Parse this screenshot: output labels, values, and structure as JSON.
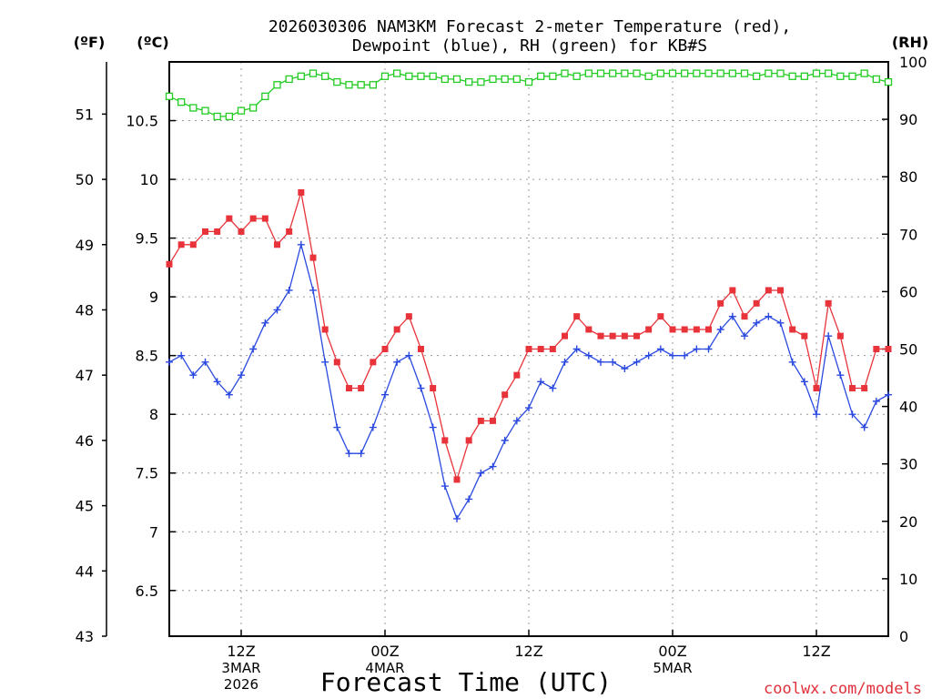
{
  "chart_data": {
    "type": "line",
    "title_line1": "2026030306 NAM3KM Forecast 2-meter Temperature (red),",
    "title_line2": "Dewpoint (blue), RH (green) for KB#S",
    "xlabel": "Forecast Time (UTC)",
    "credit": "coolwx.com/models",
    "units": {
      "fahrenheit": "(ºF)",
      "celsius": "(ºC)",
      "rh": "(RH)"
    },
    "left_f_ticks": [
      "43",
      "44",
      "45",
      "46",
      "47",
      "48",
      "49",
      "50",
      "51"
    ],
    "left_c_ticks": [
      "6.5",
      "7",
      "7.5",
      "8",
      "8.5",
      "9",
      "9.5",
      "10",
      "10.5"
    ],
    "right_rh_ticks": [
      "0",
      "10",
      "20",
      "30",
      "40",
      "50",
      "60",
      "70",
      "80",
      "90",
      "100"
    ],
    "x_ticks": [
      {
        "hour": 12,
        "label": "12Z",
        "sub1": "3MAR",
        "sub2": "2026"
      },
      {
        "hour": 24,
        "label": "00Z",
        "sub1": "4MAR",
        "sub2": ""
      },
      {
        "hour": 36,
        "label": "12Z",
        "sub1": "",
        "sub2": ""
      },
      {
        "hour": 48,
        "label": "00Z",
        "sub1": "5MAR",
        "sub2": ""
      },
      {
        "hour": 60,
        "label": "12Z",
        "sub1": "",
        "sub2": ""
      }
    ],
    "x_range_hours": [
      6,
      66
    ],
    "f_range": [
      43,
      51.8
    ],
    "rh_range": [
      0,
      100
    ],
    "grid": true,
    "series": [
      {
        "key": "temperature",
        "color": "#e8333a",
        "marker": "filled-square",
        "x": [
          6,
          7,
          8,
          9,
          10,
          11,
          12,
          13,
          14,
          15,
          16,
          17,
          18,
          19,
          20,
          21,
          22,
          23,
          24,
          25,
          26,
          27,
          28,
          29,
          30,
          31,
          32,
          33,
          34,
          35,
          36,
          37,
          38,
          39,
          40,
          41,
          42,
          43,
          44,
          45,
          46,
          47,
          48,
          49,
          50,
          51,
          52,
          53,
          54,
          55,
          56,
          57,
          58,
          59,
          60,
          61,
          62,
          63,
          64,
          65,
          66
        ],
        "values": [
          48.7,
          49,
          49,
          49.2,
          49.2,
          49.4,
          49.2,
          49.4,
          49.4,
          49,
          49.2,
          49.8,
          48.8,
          47.7,
          47.2,
          46.8,
          46.8,
          47.2,
          47.4,
          47.7,
          47.9,
          47.4,
          46.8,
          46,
          45.4,
          46,
          46.3,
          46.3,
          46.7,
          47,
          47.4,
          47.4,
          47.4,
          47.6,
          47.9,
          47.7,
          47.6,
          47.6,
          47.6,
          47.6,
          47.7,
          47.9,
          47.7,
          47.7,
          47.7,
          47.7,
          48.1,
          48.3,
          47.9,
          48.1,
          48.3,
          48.3,
          47.7,
          47.6,
          46.8,
          48.1,
          47.6,
          46.8,
          46.8,
          47.4,
          47.4
        ]
      },
      {
        "key": "dewpoint",
        "color": "#2a49e0",
        "marker": "plus",
        "x": [
          6,
          7,
          8,
          9,
          10,
          11,
          12,
          13,
          14,
          15,
          16,
          17,
          18,
          19,
          20,
          21,
          22,
          23,
          24,
          25,
          26,
          27,
          28,
          29,
          30,
          31,
          32,
          33,
          34,
          35,
          36,
          37,
          38,
          39,
          40,
          41,
          42,
          43,
          44,
          45,
          46,
          47,
          48,
          49,
          50,
          51,
          52,
          53,
          54,
          55,
          56,
          57,
          58,
          59,
          60,
          61,
          62,
          63,
          64,
          65,
          66
        ],
        "values": [
          47.2,
          47.3,
          47,
          47.2,
          46.9,
          46.7,
          47,
          47.4,
          47.8,
          48,
          48.3,
          49,
          48.3,
          47.2,
          46.2,
          45.8,
          45.8,
          46.2,
          46.7,
          47.2,
          47.3,
          46.8,
          46.2,
          45.3,
          44.8,
          45.1,
          45.5,
          45.6,
          46,
          46.3,
          46.5,
          46.9,
          46.8,
          47.2,
          47.4,
          47.3,
          47.2,
          47.2,
          47.1,
          47.2,
          47.3,
          47.4,
          47.3,
          47.3,
          47.4,
          47.4,
          47.7,
          47.9,
          47.6,
          47.8,
          47.9,
          47.8,
          47.2,
          46.9,
          46.4,
          47.6,
          47,
          46.4,
          46.2,
          46.6,
          46.7
        ]
      },
      {
        "key": "rh",
        "color": "#22cc22",
        "marker": "open-square",
        "x": [
          6,
          7,
          8,
          9,
          10,
          11,
          12,
          13,
          14,
          15,
          16,
          17,
          18,
          19,
          20,
          21,
          22,
          23,
          24,
          25,
          26,
          27,
          28,
          29,
          30,
          31,
          32,
          33,
          34,
          35,
          36,
          37,
          38,
          39,
          40,
          41,
          42,
          43,
          44,
          45,
          46,
          47,
          48,
          49,
          50,
          51,
          52,
          53,
          54,
          55,
          56,
          57,
          58,
          59,
          60,
          61,
          62,
          63,
          64,
          65,
          66
        ],
        "values": [
          94,
          93,
          92,
          91.5,
          90.5,
          90.5,
          91.5,
          92,
          94,
          96,
          97,
          97.5,
          98,
          97.5,
          96.5,
          96,
          96,
          96,
          97.5,
          98,
          97.5,
          97.5,
          97.5,
          97,
          97,
          96.5,
          96.5,
          97,
          97,
          97,
          96.5,
          97.5,
          97.5,
          98,
          97.5,
          98,
          98,
          98,
          98,
          98,
          97.5,
          98,
          98,
          98,
          98,
          98,
          98,
          98,
          98,
          97.5,
          98,
          98,
          97.5,
          97.5,
          98,
          98,
          97.5,
          97.5,
          98,
          97,
          96.5
        ]
      }
    ]
  }
}
